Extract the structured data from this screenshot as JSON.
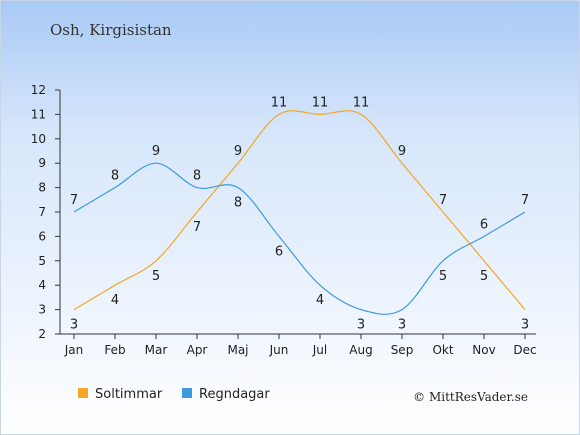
{
  "header": {
    "location": "Osh, Kirgisistan"
  },
  "footer": {
    "credit": "© MittResVader.se"
  },
  "chart_data": {
    "type": "line",
    "categories": [
      "Jan",
      "Feb",
      "Mar",
      "Apr",
      "Maj",
      "Jun",
      "Jul",
      "Aug",
      "Sep",
      "Okt",
      "Nov",
      "Dec"
    ],
    "yticks": [
      2,
      3,
      4,
      5,
      6,
      7,
      8,
      9,
      10,
      11,
      12
    ],
    "ylim": [
      2,
      12
    ],
    "grid": false,
    "legend_position": "bottom-left",
    "series": [
      {
        "name": "Soltimmar",
        "color": "#f5a623",
        "values": [
          3,
          4,
          5,
          7,
          9,
          11,
          11,
          11,
          9,
          7,
          5,
          3
        ]
      },
      {
        "name": "Regndagar",
        "color": "#3b9be0",
        "values": [
          7,
          8,
          9,
          8,
          8,
          6,
          4,
          3,
          3,
          5,
          6,
          7
        ]
      }
    ]
  }
}
